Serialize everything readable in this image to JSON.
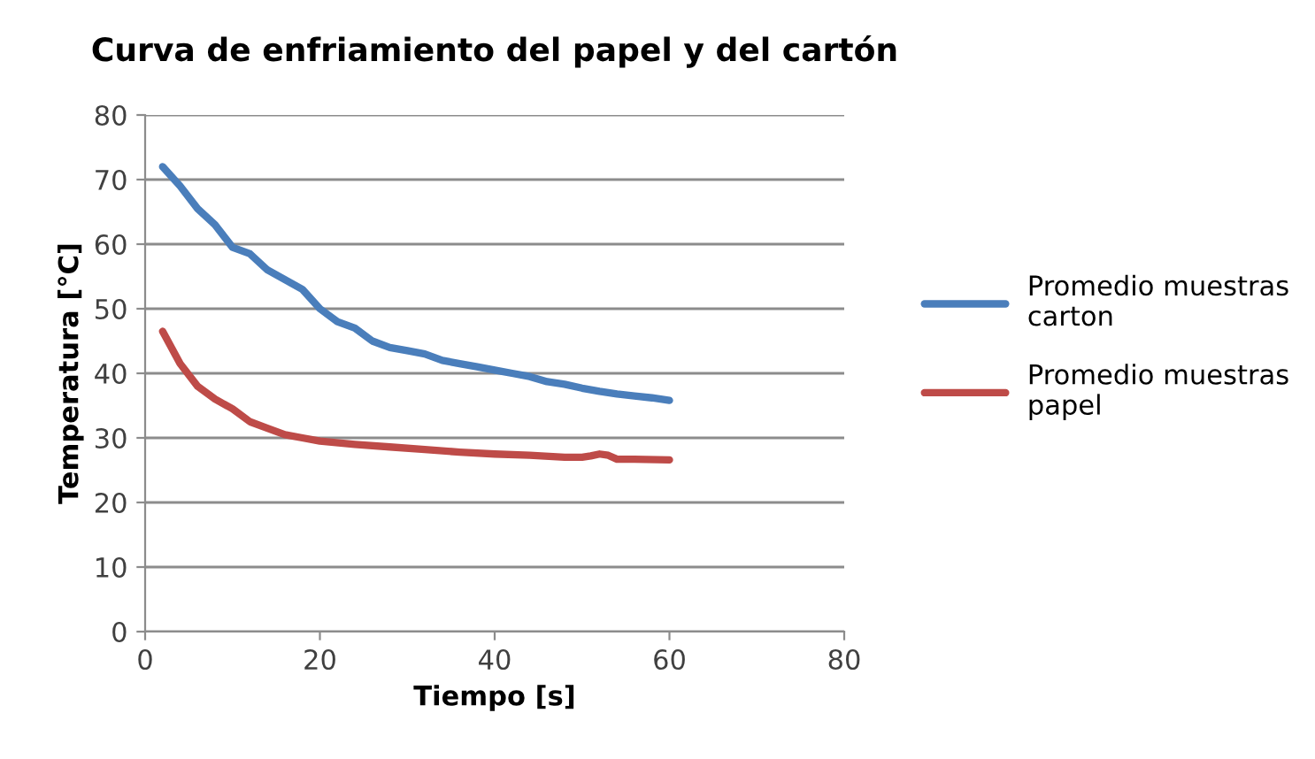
{
  "chart_data": {
    "type": "line",
    "title": "Curva de enfriamiento del papel y del cartón",
    "xlabel": "Tiempo [s]",
    "ylabel": "Temperatura [°C]",
    "xlim": [
      0,
      80
    ],
    "xticks": [
      0,
      20,
      40,
      60,
      80
    ],
    "ylim": [
      0,
      80
    ],
    "yticks": [
      0,
      10,
      20,
      30,
      40,
      50,
      60,
      70,
      80
    ],
    "grid": "y",
    "legend": "right",
    "marker": "none",
    "line_style": "solid",
    "series": [
      {
        "name": "Promedio muestras carton",
        "color": "#4a7ebb",
        "x": [
          2,
          4,
          6,
          8,
          10,
          12,
          14,
          16,
          18,
          20,
          22,
          24,
          26,
          28,
          30,
          32,
          34,
          36,
          38,
          40,
          42,
          44,
          46,
          48,
          50,
          52,
          54,
          56,
          58,
          60
        ],
        "values": [
          72,
          69,
          65.5,
          63,
          59.5,
          58.5,
          56,
          54.5,
          53,
          50,
          48,
          47,
          45,
          44,
          43.5,
          43,
          42,
          41.5,
          41,
          40.5,
          40,
          39.5,
          38.7,
          38.3,
          37.7,
          37.2,
          36.8,
          36.5,
          36.2,
          35.8
        ]
      },
      {
        "name": "Promedio muestras papel",
        "color": "#be4b48",
        "x": [
          2,
          4,
          6,
          8,
          10,
          12,
          14,
          16,
          18,
          20,
          24,
          28,
          32,
          36,
          40,
          44,
          48,
          50,
          51,
          52,
          53,
          54,
          56,
          60
        ],
        "values": [
          46.5,
          41.5,
          38,
          36,
          34.5,
          32.5,
          31.5,
          30.5,
          30,
          29.5,
          29,
          28.6,
          28.2,
          27.8,
          27.5,
          27.3,
          27,
          27,
          27.2,
          27.5,
          27.3,
          26.7,
          26.7,
          26.6
        ]
      }
    ]
  }
}
